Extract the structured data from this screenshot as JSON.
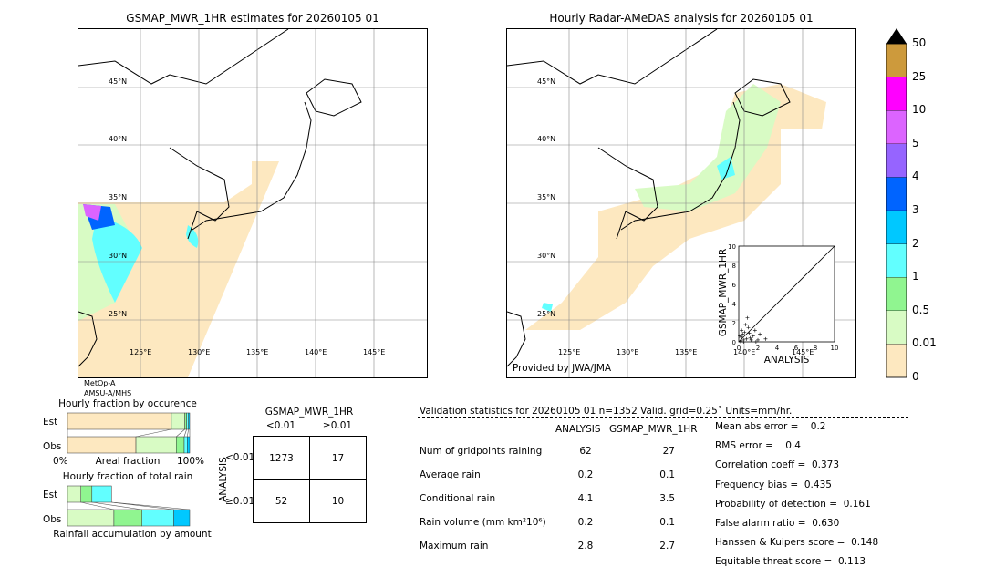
{
  "left_map": {
    "title": "GSMAP_MWR_1HR estimates for 20260105 01",
    "sensor_line1": "MetOp-A",
    "sensor_line2": "AMSU-A/MHS"
  },
  "right_map": {
    "title": "Hourly Radar-AMeDAS analysis for 20260105 01",
    "credit": "Provided by JWA/JMA"
  },
  "lat_labels": [
    "45°N",
    "40°N",
    "35°N",
    "30°N",
    "25°N"
  ],
  "lon_labels": [
    "125°E",
    "130°E",
    "135°E",
    "140°E",
    "145°E"
  ],
  "colorbar": {
    "levels": [
      "0",
      "0.01",
      "0.5",
      "1",
      "2",
      "3",
      "4",
      "5",
      "10",
      "25",
      "50"
    ],
    "colors": [
      "#fde8c0",
      "#d8fbc4",
      "#90f590",
      "#62ffff",
      "#00c8ff",
      "#0064ff",
      "#9664ff",
      "#dc64ff",
      "#ff00ff",
      "#cd9a3c"
    ],
    "extend_color": "#000000"
  },
  "scatter": {
    "xlabel": "ANALYSIS",
    "ylabel": "GSMAP_MWR_1HR",
    "ticks": [
      "0",
      "2",
      "4",
      "6",
      "8",
      "10"
    ],
    "points": [
      [
        0.2,
        0.1
      ],
      [
        0.3,
        0.5
      ],
      [
        0.5,
        0.2
      ],
      [
        0.6,
        1.0
      ],
      [
        0.8,
        0.3
      ],
      [
        1.0,
        1.5
      ],
      [
        1.2,
        0.4
      ],
      [
        0.4,
        0.8
      ],
      [
        1.5,
        0.6
      ],
      [
        2.0,
        0.2
      ],
      [
        0.7,
        1.8
      ],
      [
        1.1,
        0.9
      ],
      [
        0.9,
        2.5
      ],
      [
        1.7,
        1.2
      ],
      [
        2.8,
        0.3
      ],
      [
        0.1,
        0.6
      ],
      [
        0.3,
        1.2
      ],
      [
        1.3,
        0.2
      ],
      [
        2.2,
        0.8
      ],
      [
        0.5,
        0.0
      ],
      [
        1.8,
        0.0
      ],
      [
        0.2,
        0.0
      ]
    ]
  },
  "occurrence": {
    "title": "Hourly fraction by occurence",
    "est_label": "Est",
    "obs_label": "Obs",
    "xlabel": "Areal fraction",
    "x0": "0%",
    "x1": "100%",
    "est": [
      0.85,
      0.11,
      0.015,
      0.015,
      0.01
    ],
    "obs": [
      0.56,
      0.33,
      0.065,
      0.025,
      0.02
    ]
  },
  "total_rain": {
    "title": "Hourly fraction of total rain",
    "est_label": "Est",
    "obs_label": "Obs",
    "xlabel": "Rainfall accumulation by amount",
    "est": [
      0.11,
      0.09,
      0.16,
      0.0
    ],
    "obs": [
      0.38,
      0.23,
      0.26,
      0.13
    ]
  },
  "contingency": {
    "col_title": "GSMAP_MWR_1HR",
    "col1": "<0.01",
    "col2": "≥0.01",
    "row_title": "ANALYSIS",
    "row1": "<0.01",
    "row2": "≥0.01",
    "a": "1273",
    "b": "17",
    "c": "52",
    "d": "10"
  },
  "stats": {
    "header": "Validation statistics for 20260105 01  n=1352 Valid. grid=0.25˚ Units=mm/hr.",
    "col_analysis": "ANALYSIS",
    "col_gsmap": "GSMAP_MWR_1HR",
    "rows": [
      {
        "label": "Num of gridpoints raining",
        "analysis": "62",
        "gsmap": "27"
      },
      {
        "label": "Average rain",
        "analysis": "0.2",
        "gsmap": "0.1"
      },
      {
        "label": "Conditional rain",
        "analysis": "4.1",
        "gsmap": "3.5"
      },
      {
        "label": "Rain volume (mm km²10⁶)",
        "analysis": "0.2",
        "gsmap": "0.1"
      },
      {
        "label": "Maximum rain",
        "analysis": "2.8",
        "gsmap": "2.7"
      }
    ],
    "scores": [
      "Mean abs error =    0.2",
      "RMS error =    0.4",
      "Correlation coeff =  0.373",
      "Frequency bias =  0.435",
      "Probability of detection =  0.161",
      "False alarm ratio =  0.630",
      "Hanssen & Kuipers score =  0.148",
      "Equitable threat score =  0.113"
    ]
  }
}
